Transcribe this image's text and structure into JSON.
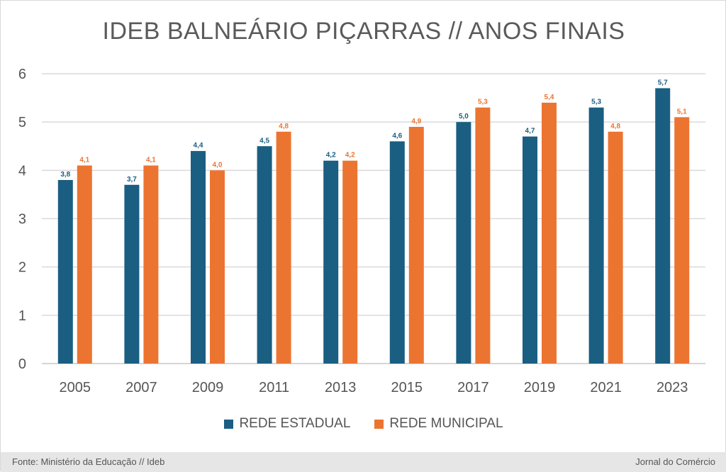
{
  "title": "IDEB BALNEÁRIO PIÇARRAS  //  ANOS FINAIS",
  "footer": {
    "source": "Fonte: Ministério da Educação // Ideb",
    "brand": "Jornal do Comércio"
  },
  "colors": {
    "estadual": "#1a5e82",
    "municipal": "#ec7431",
    "grid": "#d9d9d9"
  },
  "chart_data": {
    "type": "bar",
    "title": "IDEB BALNEÁRIO PIÇARRAS  //  ANOS FINAIS",
    "xlabel": "",
    "ylabel": "",
    "ylim": [
      0,
      6
    ],
    "yticks": [
      "0",
      "1",
      "2",
      "3",
      "4",
      "5",
      "6"
    ],
    "grid": true,
    "legend_position": "bottom",
    "categories": [
      "2005",
      "2007",
      "2009",
      "2011",
      "2013",
      "2015",
      "2017",
      "2019",
      "2021",
      "2023"
    ],
    "series": [
      {
        "name": "REDE ESTADUAL",
        "values": [
          3.8,
          3.7,
          4.4,
          4.5,
          4.2,
          4.6,
          5.0,
          4.7,
          5.3,
          5.7
        ],
        "labels": [
          "3,8",
          "3,7",
          "4,4",
          "4,5",
          "4,2",
          "4,6",
          "5,0",
          "4,7",
          "5,3",
          "5,7"
        ]
      },
      {
        "name": "REDE MUNICIPAL",
        "values": [
          4.1,
          4.1,
          4.0,
          4.8,
          4.2,
          4.9,
          5.3,
          5.4,
          4.8,
          5.1
        ],
        "labels": [
          "4,1",
          "4,1",
          "4,0",
          "4,8",
          "4,2",
          "4,9",
          "5,3",
          "5,4",
          "4,8",
          "5,1"
        ]
      }
    ]
  }
}
